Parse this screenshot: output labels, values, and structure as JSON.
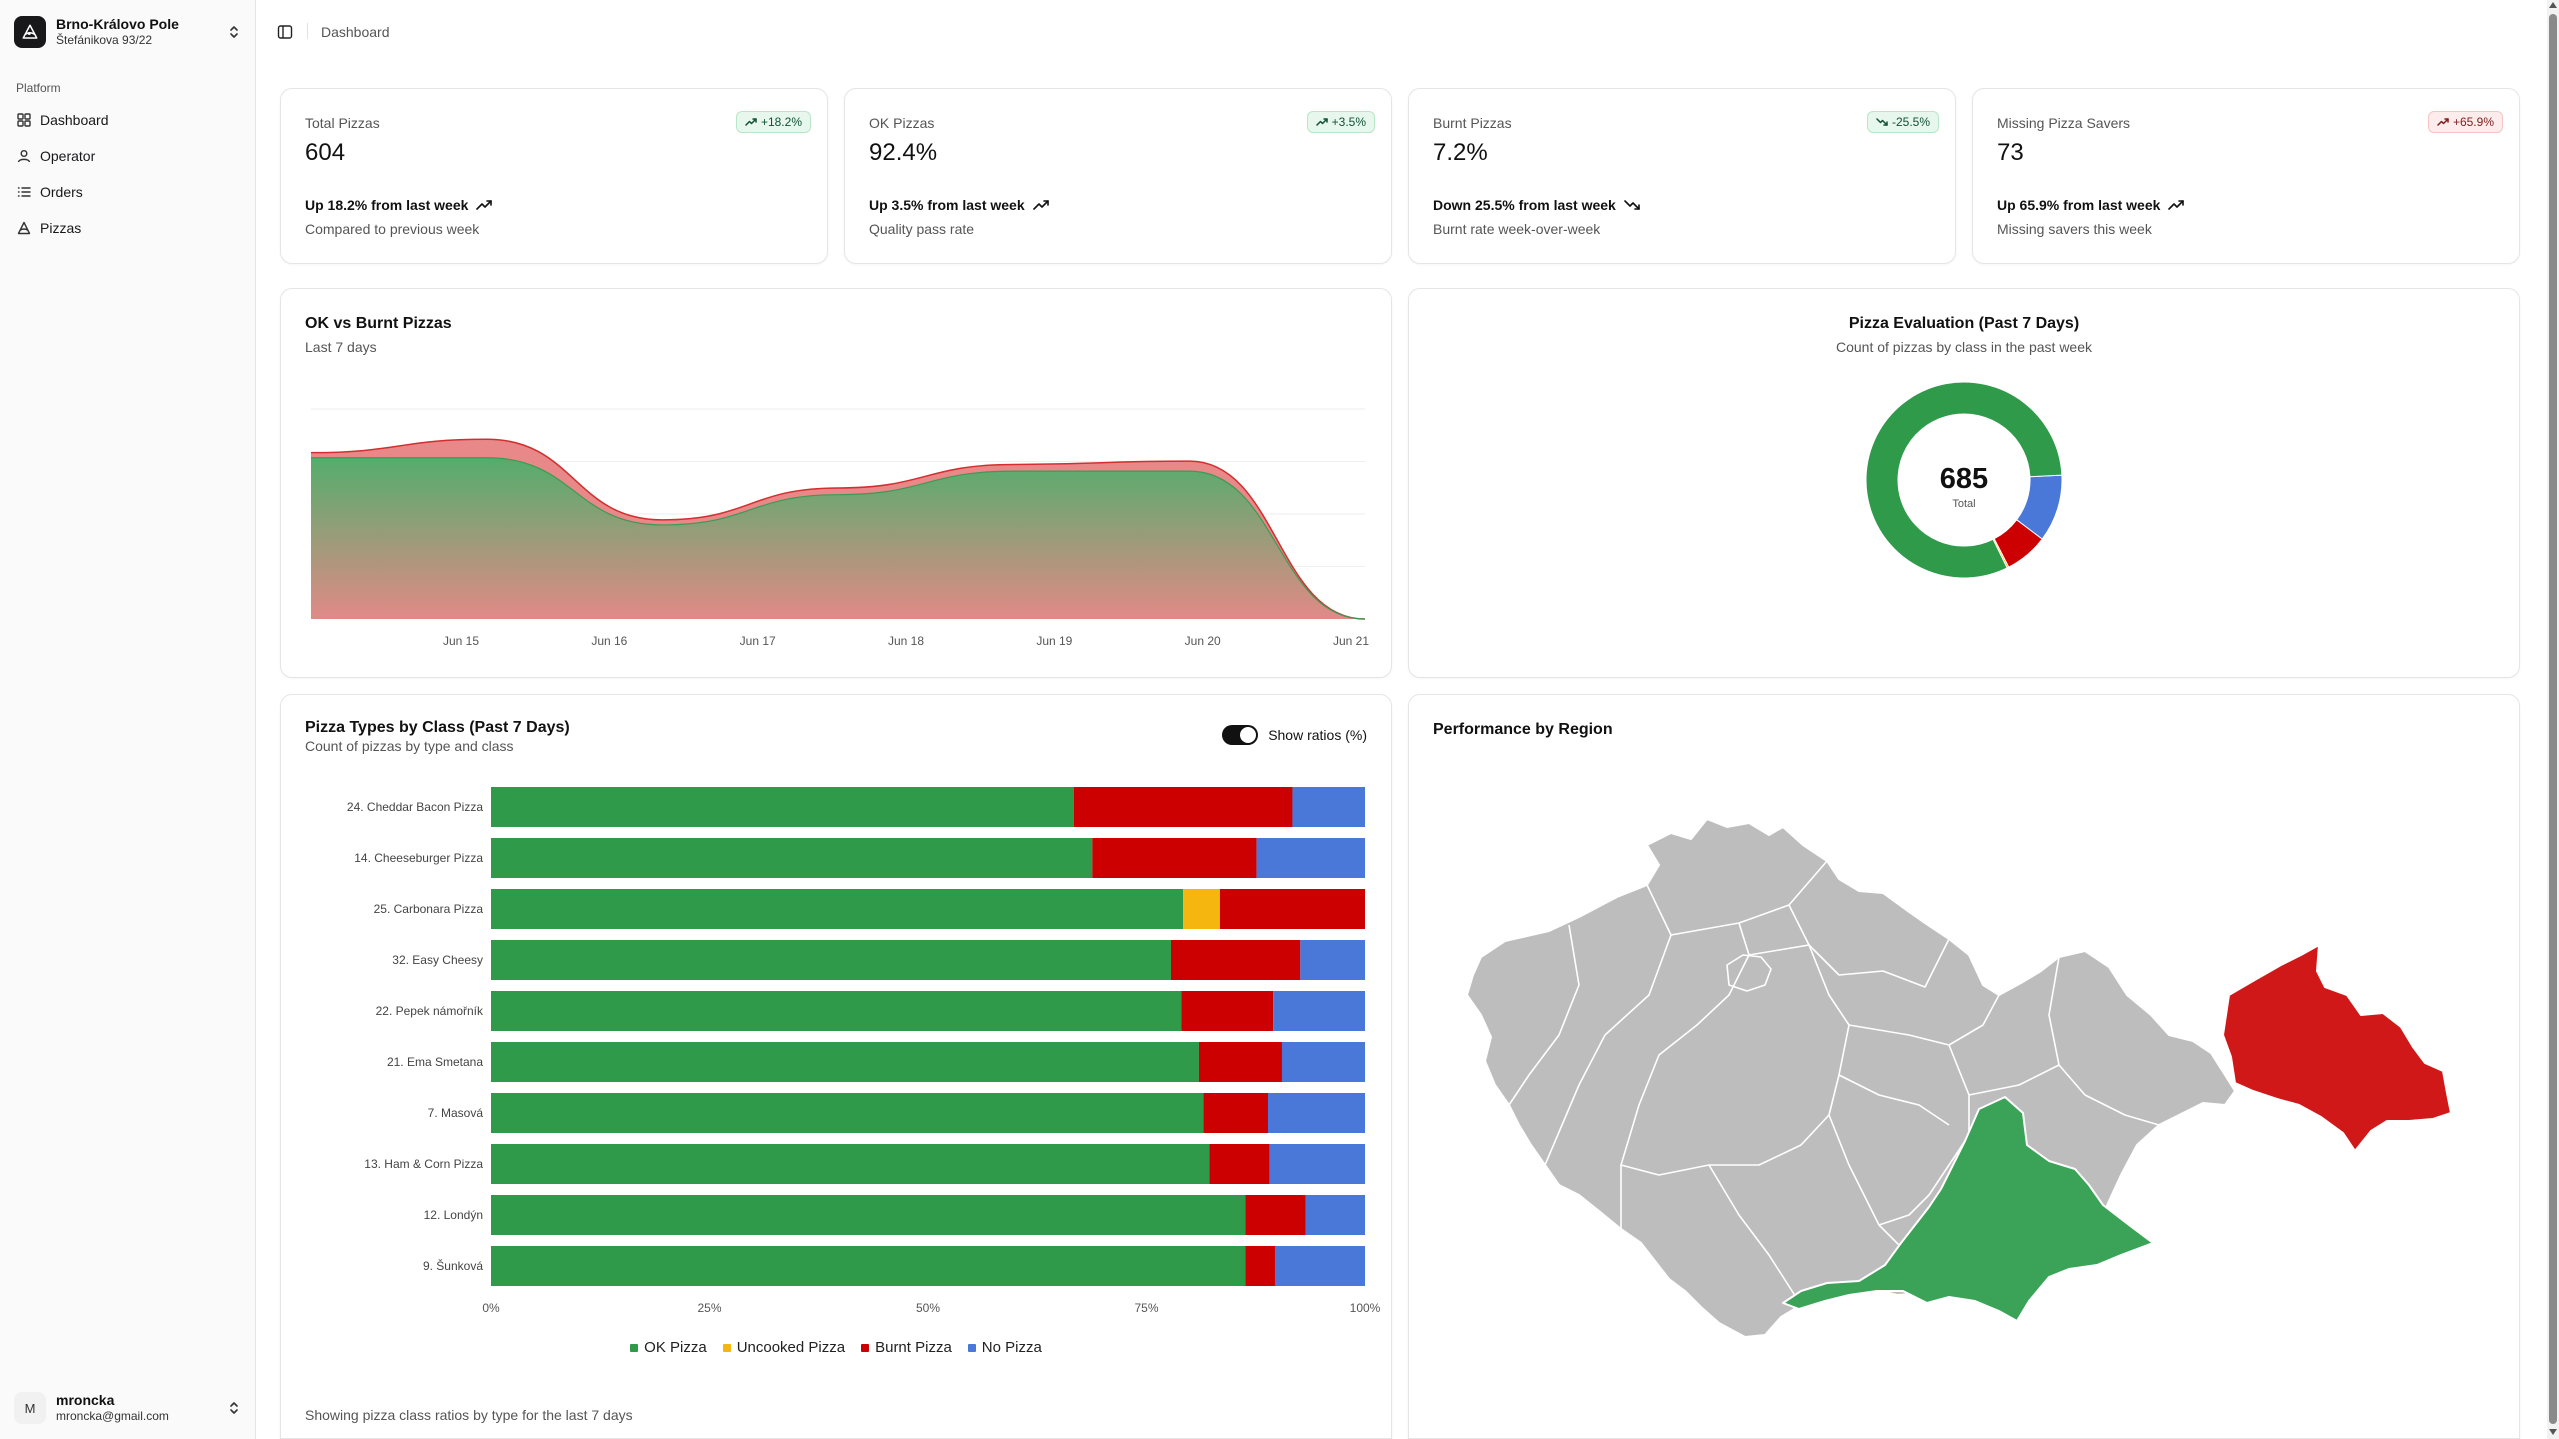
{
  "workspace": {
    "name": "Brno-Královo Pole",
    "address": "Štefánikova 93/22"
  },
  "sidebar": {
    "group_label": "Platform",
    "items": [
      {
        "label": "Dashboard",
        "icon": "dashboard-icon"
      },
      {
        "label": "Operator",
        "icon": "user-icon"
      },
      {
        "label": "Orders",
        "icon": "list-icon"
      },
      {
        "label": "Pizzas",
        "icon": "pizza-icon"
      }
    ]
  },
  "user": {
    "initial": "M",
    "name": "mroncka",
    "email": "mroncka@gmail.com"
  },
  "header": {
    "breadcrumb": "Dashboard"
  },
  "kpis": [
    {
      "label": "Total Pizzas",
      "value": "604",
      "badge": "+18.2%",
      "badge_tone": "green",
      "trend": "Up 18.2% from last week",
      "direction": "up",
      "sub": "Compared to previous week"
    },
    {
      "label": "OK Pizzas",
      "value": "92.4%",
      "badge": "+3.5%",
      "badge_tone": "green",
      "trend": "Up 3.5% from last week",
      "direction": "up",
      "sub": "Quality pass rate"
    },
    {
      "label": "Burnt Pizzas",
      "value": "7.2%",
      "badge": "-25.5%",
      "badge_tone": "green",
      "trend": "Down 25.5% from last week",
      "direction": "down",
      "sub": "Burnt rate week-over-week"
    },
    {
      "label": "Missing Pizza Savers",
      "value": "73",
      "badge": "+65.9%",
      "badge_tone": "red",
      "trend": "Up 65.9% from last week",
      "direction": "up",
      "sub": "Missing savers this week"
    }
  ],
  "colors": {
    "ok": "#2e9a4a",
    "uncooked": "#f5b70f",
    "burnt": "#cc0000",
    "no_pizza": "#4a78d9",
    "area_ok": "#4caf6a",
    "area_burnt": "#e57373",
    "map_grey": "#bdbdbd",
    "map_green": "#3aa357",
    "map_red": "#d01818"
  },
  "area_card": {
    "title": "OK vs Burnt Pizzas",
    "subtitle": "Last 7 days"
  },
  "donut_card": {
    "title": "Pizza Evaluation (Past 7 Days)",
    "subtitle": "Count of pizzas by class in the past week",
    "total_value": "685",
    "total_label": "Total"
  },
  "bar_card": {
    "title": "Pizza Types by Class (Past 7 Days)",
    "subtitle": "Count of pizzas by type and class",
    "toggle_label": "Show ratios (%)",
    "footer": "Showing pizza class ratios by type for the last 7 days"
  },
  "map_card": {
    "title": "Performance by Region"
  },
  "chart_data": [
    {
      "type": "area",
      "title": "OK vs Burnt Pizzas",
      "x": [
        "Jun 15",
        "Jun 16",
        "Jun 17",
        "Jun 18",
        "Jun 19",
        "Jun 20",
        "Jun 21"
      ],
      "series": [
        {
          "name": "",
          "values": [
            96,
            96,
            56,
            74,
            88,
            88,
            0
          ]
        },
        {
          "name": "",
          "values": [
            3,
            11,
            3,
            4,
            4,
            6,
            0
          ]
        }
      ],
      "stacked": true,
      "ylim": [
        0,
        125
      ],
      "grid": true
    },
    {
      "type": "pie",
      "title": "Pizza Evaluation (Past 7 Days)",
      "categories": [
        "OK Pizza",
        "Uncooked Pizza",
        "Burnt Pizza",
        "No Pizza"
      ],
      "values": [
        558,
        2,
        49,
        76
      ],
      "donut": true
    },
    {
      "type": "bar",
      "orientation": "horizontal",
      "stacked": true,
      "title": "Pizza Types by Class (Past 7 Days)",
      "categories": [
        "24. Cheddar Bacon Pizza",
        "14. Cheeseburger Pizza",
        "25. Carbonara Pizza",
        "32. Easy Cheesy",
        "22. Pepek námořník",
        "21. Ema Smetana",
        "7. Masová",
        "13. Ham & Corn Pizza",
        "12. Londýn",
        "9. Šunková"
      ],
      "series": [
        {
          "name": "OK Pizza",
          "values": [
            66.7,
            68.8,
            79.2,
            77.8,
            79.0,
            81.0,
            81.5,
            82.2,
            86.3,
            86.3
          ]
        },
        {
          "name": "Uncooked Pizza",
          "values": [
            0,
            0,
            4.2,
            0,
            0,
            0,
            0,
            0,
            0,
            0
          ]
        },
        {
          "name": "Burnt Pizza",
          "values": [
            25.0,
            18.8,
            16.6,
            14.8,
            10.5,
            9.5,
            7.4,
            6.9,
            6.9,
            3.4
          ]
        },
        {
          "name": "No Pizza",
          "values": [
            8.3,
            12.4,
            0,
            7.4,
            10.5,
            9.5,
            11.1,
            10.9,
            6.8,
            10.3
          ]
        }
      ],
      "xticks": [
        "0%",
        "25%",
        "50%",
        "75%",
        "100%"
      ],
      "xlim": [
        0,
        100
      ],
      "legend": "bottom"
    }
  ]
}
